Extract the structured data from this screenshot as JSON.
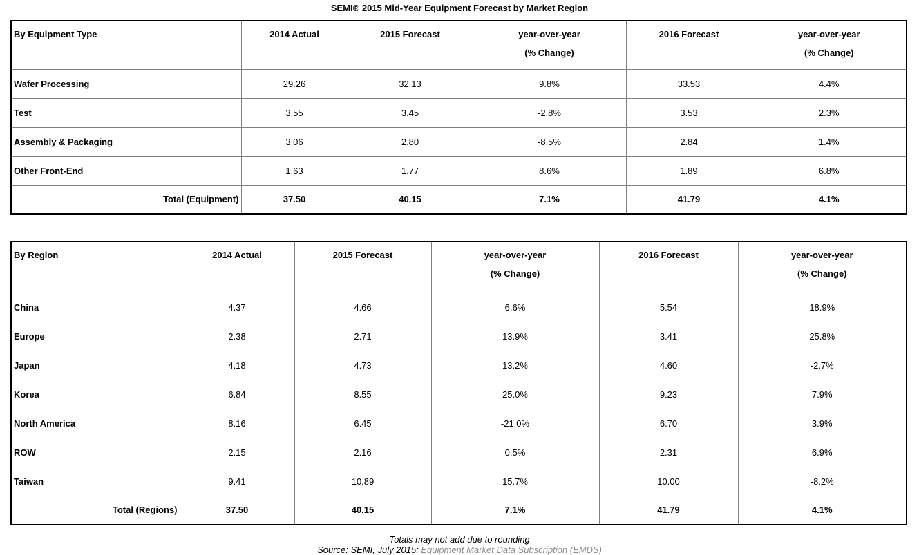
{
  "page": {
    "title": "SEMI® 2015 Mid-Year Equipment Forecast by Market Region",
    "footnote": "Totals may not add due to rounding",
    "source_prefix": "Source: SEMI, July 2015; ",
    "source_link": "Equipment Market Data Subscription (EMDS)",
    "link_color": "#8c8c8c"
  },
  "tables": [
    {
      "name": "by-equipment-type",
      "header": [
        "By Equipment Type",
        "2014 Actual",
        "2015 Forecast",
        "year-over-year",
        "2016 Forecast",
        "year-over-year"
      ],
      "header_sub": [
        "",
        "",
        "",
        "(% Change)",
        "",
        "(% Change)"
      ],
      "rows": [
        {
          "label": "Wafer Processing",
          "values": [
            "29.26",
            "32.13",
            "9.8%",
            "33.53",
            "4.4%"
          ],
          "total": false
        },
        {
          "label": "Test",
          "values": [
            "3.55",
            "3.45",
            "-2.8%",
            "3.53",
            "2.3%"
          ],
          "total": false
        },
        {
          "label": "Assembly & Packaging",
          "values": [
            "3.06",
            "2.80",
            "-8.5%",
            "2.84",
            "1.4%"
          ],
          "total": false
        },
        {
          "label": "Other Front-End",
          "values": [
            "1.63",
            "1.77",
            "8.6%",
            "1.89",
            "6.8%"
          ],
          "total": false
        },
        {
          "label": "Total (Equipment)",
          "values": [
            "37.50",
            "40.15",
            "7.1%",
            "41.79",
            "4.1%"
          ],
          "total": true
        }
      ]
    },
    {
      "name": "by-region",
      "header": [
        "By Region",
        "2014 Actual",
        "2015 Forecast",
        "year-over-year",
        "2016 Forecast",
        "year-over-year"
      ],
      "header_sub": [
        "",
        "",
        "",
        "(% Change)",
        "",
        "(% Change)"
      ],
      "rows": [
        {
          "label": "China",
          "values": [
            "4.37",
            "4.66",
            "6.6%",
            "5.54",
            "18.9%"
          ],
          "total": false
        },
        {
          "label": "Europe",
          "values": [
            "2.38",
            "2.71",
            "13.9%",
            "3.41",
            "25.8%"
          ],
          "total": false
        },
        {
          "label": "Japan",
          "values": [
            "4.18",
            "4.73",
            "13.2%",
            "4.60",
            "-2.7%"
          ],
          "total": false
        },
        {
          "label": "Korea",
          "values": [
            "6.84",
            "8.55",
            "25.0%",
            "9.23",
            "7.9%"
          ],
          "total": false
        },
        {
          "label": "North America",
          "values": [
            "8.16",
            "6.45",
            "-21.0%",
            "6.70",
            "3.9%"
          ],
          "total": false
        },
        {
          "label": "ROW",
          "values": [
            "2.15",
            "2.16",
            "0.5%",
            "2.31",
            "6.9%"
          ],
          "total": false
        },
        {
          "label": "Taiwan",
          "values": [
            "9.41",
            "10.89",
            "15.7%",
            "10.00",
            "-8.2%"
          ],
          "total": false
        },
        {
          "label": "Total (Regions)",
          "values": [
            "37.50",
            "40.15",
            "7.1%",
            "41.79",
            "4.1%"
          ],
          "total": true
        }
      ]
    }
  ]
}
